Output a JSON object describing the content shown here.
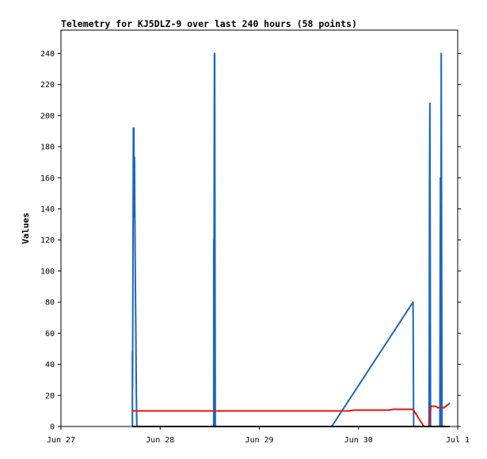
{
  "chart_data": {
    "type": "line",
    "title": "Telemetry for KJ5DLZ-9 over last 240 hours (58 points)",
    "xlabel": "",
    "ylabel": "Values",
    "x_ticks": [
      "Jun 27",
      "Jun 28",
      "Jun 29",
      "Jun 30",
      "Jul 1"
    ],
    "xlim": [
      0,
      4
    ],
    "ylim": [
      0,
      255
    ],
    "y_ticks": [
      0,
      20,
      40,
      60,
      80,
      100,
      120,
      140,
      160,
      180,
      200,
      220,
      240
    ],
    "grid": false,
    "legend": "none",
    "x_unit": "days since Jun 27 00:00",
    "series": [
      {
        "color": "#1a66c6",
        "points": [
          [
            0.72,
            0
          ],
          [
            0.72,
            48
          ],
          [
            0.722,
            25
          ],
          [
            0.726,
            97
          ],
          [
            0.73,
            192
          ],
          [
            0.735,
            192
          ],
          [
            0.737,
            135
          ],
          [
            0.742,
            173
          ],
          [
            0.745,
            135
          ],
          [
            0.75,
            96
          ],
          [
            0.755,
            58
          ],
          [
            0.76,
            20
          ],
          [
            0.765,
            0
          ],
          [
            1.54,
            0
          ],
          [
            1.54,
            120
          ],
          [
            1.543,
            112
          ],
          [
            1.547,
            240
          ],
          [
            1.55,
            240
          ],
          [
            1.553,
            112
          ],
          [
            1.556,
            0
          ],
          [
            2.73,
            0
          ],
          [
            3.55,
            80
          ],
          [
            3.553,
            40
          ],
          [
            3.556,
            0
          ],
          [
            3.71,
            0
          ],
          [
            3.713,
            52
          ],
          [
            3.716,
            156
          ],
          [
            3.72,
            208
          ],
          [
            3.723,
            104
          ],
          [
            3.726,
            0
          ],
          [
            3.82,
            0
          ],
          [
            3.823,
            80
          ],
          [
            3.826,
            160
          ],
          [
            3.83,
            0
          ],
          [
            3.834,
            240
          ],
          [
            3.838,
            120
          ],
          [
            3.842,
            0
          ],
          [
            3.92,
            0
          ]
        ]
      },
      {
        "color": "#e0180c",
        "points": [
          [
            0.72,
            10
          ],
          [
            1.55,
            10
          ],
          [
            2.9,
            10
          ],
          [
            2.95,
            10.5
          ],
          [
            3.3,
            10.5
          ],
          [
            3.35,
            11
          ],
          [
            3.55,
            11
          ],
          [
            3.66,
            0
          ],
          [
            3.71,
            0
          ],
          [
            3.73,
            13
          ],
          [
            3.78,
            13
          ],
          [
            3.8,
            12
          ],
          [
            3.82,
            12.5
          ],
          [
            3.86,
            12
          ],
          [
            3.92,
            15
          ]
        ]
      },
      {
        "color": "#000000",
        "points": [
          [
            0.72,
            0
          ],
          [
            3.92,
            0
          ]
        ]
      }
    ]
  }
}
